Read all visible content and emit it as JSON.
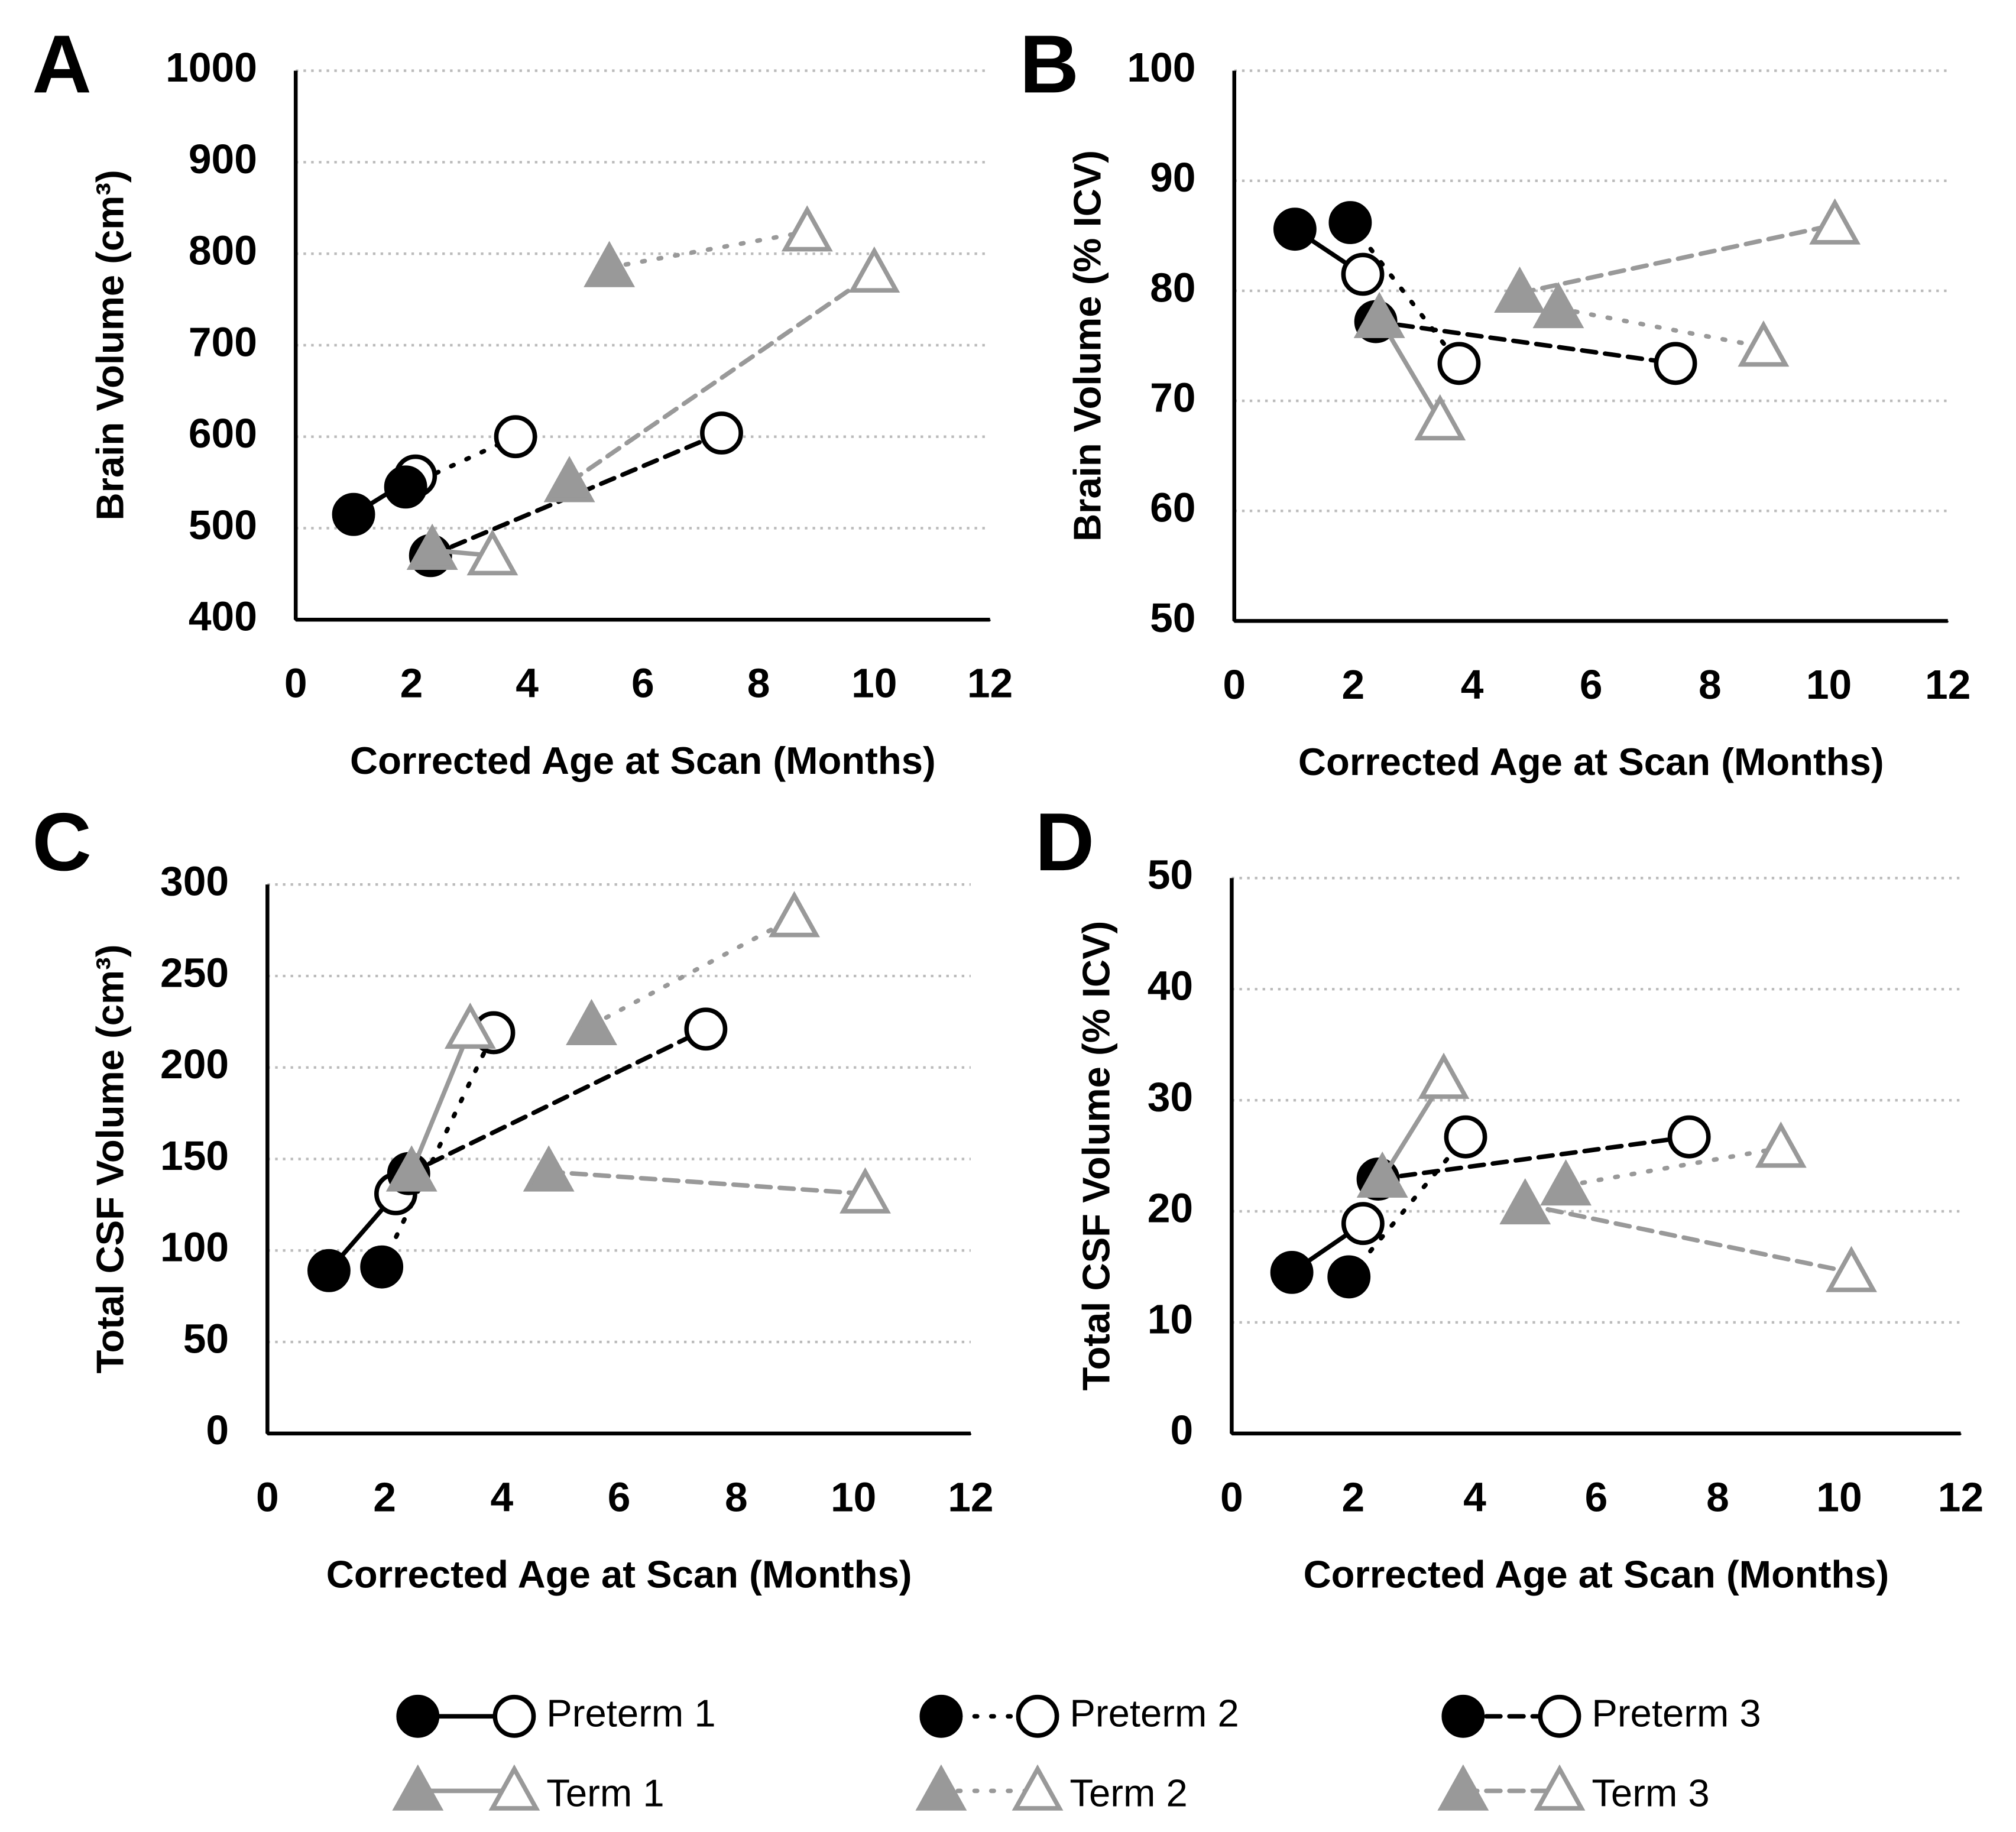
{
  "chart_data": [
    {
      "type": "line",
      "label": "A",
      "xlabel": "Corrected Age at Scan (Months)",
      "ylabel": "Brain Volume (cm³)",
      "xlim": [
        0,
        12
      ],
      "xticks": [
        0,
        2,
        4,
        6,
        8,
        10,
        12
      ],
      "ylim": [
        400,
        1000
      ],
      "yticks": [
        400,
        500,
        600,
        700,
        800,
        900,
        1000
      ],
      "grid": true,
      "series": [
        {
          "name": "Preterm 1",
          "color": "#000000",
          "line": "solid",
          "marker": "circle",
          "x": [
            1.0,
            2.07
          ],
          "values": [
            515,
            557
          ]
        },
        {
          "name": "Preterm 2",
          "color": "#000000",
          "line": "dotted",
          "marker": "circle",
          "x": [
            1.9,
            3.8
          ],
          "values": [
            545,
            600
          ]
        },
        {
          "name": "Preterm 3",
          "color": "#000000",
          "line": "dashed",
          "marker": "circle",
          "x": [
            2.33,
            7.36
          ],
          "values": [
            470,
            604
          ]
        },
        {
          "name": "Term 1",
          "color": "#999999",
          "line": "solid",
          "marker": "triangle",
          "x": [
            2.36,
            3.4
          ],
          "values": [
            476,
            470
          ]
        },
        {
          "name": "Term 2",
          "color": "#999999",
          "line": "dotted",
          "marker": "triangle",
          "x": [
            5.42,
            8.84
          ],
          "values": [
            785,
            824
          ]
        },
        {
          "name": "Term 3",
          "color": "#999999",
          "line": "dashed",
          "marker": "triangle",
          "x": [
            4.73,
            10.0
          ],
          "values": [
            550,
            779
          ]
        }
      ]
    },
    {
      "type": "line",
      "label": "B",
      "xlabel": "Corrected Age at Scan (Months)",
      "ylabel": "Brain Volume (% ICV)",
      "xlim": [
        0,
        12
      ],
      "xticks": [
        0,
        2,
        4,
        6,
        8,
        10,
        12
      ],
      "ylim": [
        50,
        100
      ],
      "yticks": [
        50,
        60,
        70,
        80,
        90,
        100
      ],
      "grid": true,
      "series": [
        {
          "name": "Preterm 1",
          "color": "#000000",
          "line": "solid",
          "marker": "circle",
          "x": [
            1.02,
            2.16
          ],
          "values": [
            85.6,
            81.5
          ]
        },
        {
          "name": "Preterm 2",
          "color": "#000000",
          "line": "dotted",
          "marker": "circle",
          "x": [
            1.95,
            3.78
          ],
          "values": [
            86.2,
            73.4
          ]
        },
        {
          "name": "Preterm 3",
          "color": "#000000",
          "line": "dashed",
          "marker": "circle",
          "x": [
            2.38,
            7.42
          ],
          "values": [
            77.2,
            73.4
          ]
        },
        {
          "name": "Term 1",
          "color": "#999999",
          "line": "solid",
          "marker": "triangle",
          "x": [
            2.44,
            3.46
          ],
          "values": [
            77.5,
            68.2
          ]
        },
        {
          "name": "Term 2",
          "color": "#999999",
          "line": "dotted",
          "marker": "triangle",
          "x": [
            5.45,
            8.9
          ],
          "values": [
            78.4,
            74.9
          ]
        },
        {
          "name": "Term 3",
          "color": "#999999",
          "line": "dashed",
          "marker": "triangle",
          "x": [
            4.8,
            10.1
          ],
          "values": [
            79.8,
            86.0
          ]
        }
      ]
    },
    {
      "type": "line",
      "label": "C",
      "xlabel": "Corrected Age at Scan (Months)",
      "ylabel": "Total CSF Volume (cm³)",
      "xlim": [
        0,
        12
      ],
      "xticks": [
        0,
        2,
        4,
        6,
        8,
        10,
        12
      ],
      "ylim": [
        0,
        300
      ],
      "yticks": [
        0,
        50,
        100,
        150,
        200,
        250,
        300
      ],
      "grid": true,
      "series": [
        {
          "name": "Preterm 1",
          "color": "#000000",
          "line": "solid",
          "marker": "circle",
          "x": [
            1.05,
            2.19
          ],
          "values": [
            89,
            131
          ]
        },
        {
          "name": "Preterm 2",
          "color": "#000000",
          "line": "dotted",
          "marker": "circle",
          "x": [
            1.95,
            3.86
          ],
          "values": [
            91,
            219
          ]
        },
        {
          "name": "Preterm 3",
          "color": "#000000",
          "line": "dashed",
          "marker": "circle",
          "x": [
            2.41,
            7.48
          ],
          "values": [
            142,
            221
          ]
        },
        {
          "name": "Term 1",
          "color": "#999999",
          "line": "solid",
          "marker": "triangle",
          "x": [
            2.46,
            3.46
          ],
          "values": [
            143,
            221
          ]
        },
        {
          "name": "Term 2",
          "color": "#999999",
          "line": "dotted",
          "marker": "triangle",
          "x": [
            5.53,
            8.99
          ],
          "values": [
            223,
            282
          ]
        },
        {
          "name": "Term 3",
          "color": "#999999",
          "line": "dashed",
          "marker": "triangle",
          "x": [
            4.8,
            10.2
          ],
          "values": [
            143,
            131
          ]
        }
      ]
    },
    {
      "type": "line",
      "label": "D",
      "xlabel": "Corrected Age at Scan (Months)",
      "ylabel": "Total CSF Volume (% ICV)",
      "xlim": [
        0,
        12
      ],
      "xticks": [
        0,
        2,
        4,
        6,
        8,
        10,
        12
      ],
      "ylim": [
        0,
        50
      ],
      "yticks": [
        0,
        10,
        20,
        30,
        40,
        50
      ],
      "grid": true,
      "series": [
        {
          "name": "Preterm 1",
          "color": "#000000",
          "line": "solid",
          "marker": "circle",
          "x": [
            0.99,
            2.16
          ],
          "values": [
            14.5,
            18.9
          ]
        },
        {
          "name": "Preterm 2",
          "color": "#000000",
          "line": "dotted",
          "marker": "circle",
          "x": [
            1.93,
            3.85
          ],
          "values": [
            14.1,
            26.7
          ]
        },
        {
          "name": "Preterm 3",
          "color": "#000000",
          "line": "dashed",
          "marker": "circle",
          "x": [
            2.41,
            7.53
          ],
          "values": [
            22.9,
            26.7
          ]
        },
        {
          "name": "Term 1",
          "color": "#999999",
          "line": "solid",
          "marker": "triangle",
          "x": [
            2.48,
            3.49
          ],
          "values": [
            23.0,
            31.9
          ]
        },
        {
          "name": "Term 2",
          "color": "#999999",
          "line": "dotted",
          "marker": "triangle",
          "x": [
            5.5,
            9.04
          ],
          "values": [
            22.3,
            25.7
          ]
        },
        {
          "name": "Term 3",
          "color": "#999999",
          "line": "dashed",
          "marker": "triangle",
          "x": [
            4.83,
            10.2
          ],
          "values": [
            20.6,
            14.5
          ]
        }
      ]
    }
  ]
}
